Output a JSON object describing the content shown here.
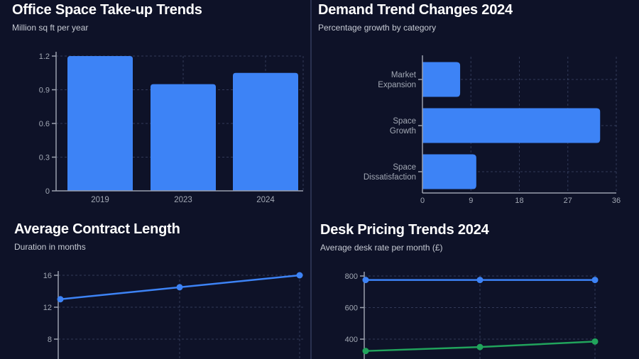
{
  "theme": {
    "background": "#0e1228",
    "divider": "#2a3150",
    "title_color": "#ffffff",
    "subtitle_color": "#c6cad3",
    "tick_color": "#a2a8b4",
    "axis_color": "#9aa0ad",
    "grid_color": "rgba(122,138,185,0.33)",
    "accent_blue": "#3d83f6",
    "accent_green": "#21a45c"
  },
  "chart_data": [
    {
      "type": "bar",
      "title": "Office Space Take-up Trends",
      "subtitle": "Million sq ft per year",
      "categories": [
        "2019",
        "2023",
        "2024"
      ],
      "values": [
        1.2,
        0.95,
        1.05
      ],
      "ylim": [
        0,
        1.2
      ],
      "yticks": [
        0,
        0.3,
        0.6,
        0.9,
        1.2
      ],
      "grid": true,
      "legend": false,
      "bar_color": "#3d83f6"
    },
    {
      "type": "hbar",
      "title": "Demand Trend Changes 2024",
      "subtitle": "Percentage growth by category",
      "categories": [
        "Market Expansion",
        "Space Growth",
        "Space Dissatisfaction"
      ],
      "values": [
        7,
        33,
        10
      ],
      "xlim": [
        0,
        36
      ],
      "xticks": [
        0,
        9,
        18,
        27,
        36
      ],
      "grid": true,
      "legend": false,
      "bar_color": "#3d83f6"
    },
    {
      "type": "line",
      "title": "Average Contract Length",
      "subtitle": "Duration in months",
      "series": [
        {
          "name": "contract-length-blue",
          "color": "#3d83f6",
          "values": [
            13,
            14.5,
            16
          ]
        }
      ],
      "yticks": [
        8,
        12,
        16
      ],
      "ylim_visible": [
        8,
        16
      ],
      "x_axis_labels_visible": false,
      "grid": true,
      "legend": false
    },
    {
      "type": "line",
      "title": "Desk Pricing Trends 2024",
      "subtitle": "Average desk rate per month (£)",
      "series": [
        {
          "name": "rate-blue",
          "color": "#3d83f6",
          "values": [
            775,
            775,
            775
          ]
        },
        {
          "name": "rate-green",
          "color": "#21a45c",
          "values": [
            325,
            350,
            385
          ]
        }
      ],
      "yticks": [
        400,
        600,
        800
      ],
      "ylim_visible": [
        400,
        800
      ],
      "x_axis_labels_visible": false,
      "grid": true,
      "legend": false
    }
  ]
}
